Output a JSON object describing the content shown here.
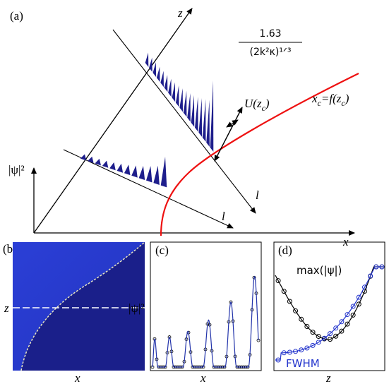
{
  "panel_a": {
    "label": "(a)",
    "z_axis": "z",
    "psi_axis": "|ψ|²",
    "x_axis": "x",
    "l_lower": "l",
    "l_upper": "l",
    "width_numerator": "1.63",
    "width_denominator": "(2k²κ)¹ᐟ³",
    "curve_label": {
      "parts": [
        "x",
        "c",
        "=f(z",
        "c",
        ")"
      ]
    },
    "amplitude_label": {
      "parts": [
        "U(z",
        "c",
        ")"
      ]
    }
  },
  "panel_b": {
    "label": "(b)",
    "z_axis": "z",
    "x_axis": "x",
    "psi_label": "|ψ|²"
  },
  "panel_c": {
    "label": "(c)",
    "x_axis": "x"
  },
  "panel_d": {
    "label": "(d)",
    "max_label": "max(|ψ|)",
    "fwhm_label": "FWHM",
    "z_axis": "z"
  }
}
